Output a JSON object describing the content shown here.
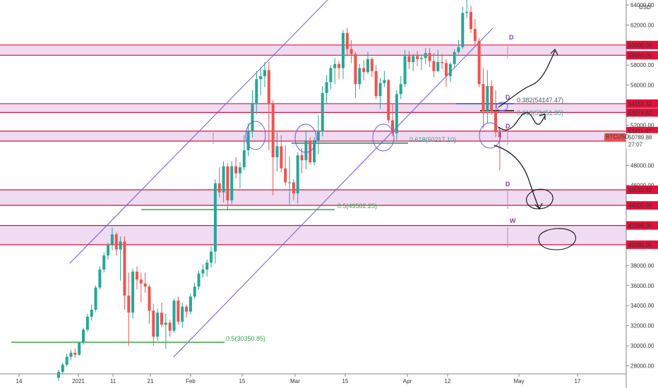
{
  "chart_data": {
    "type": "candlestick",
    "symbol": "BTCUSD",
    "currency": "USD",
    "current_price": "50789.88",
    "countdown": "27:07",
    "x_ticks": [
      "14",
      "2021",
      "11",
      "21",
      "Feb",
      "15",
      "Mar",
      "15",
      "Apr",
      "12",
      "May",
      "17"
    ],
    "y_ticks": [
      "64000.00",
      "62000.00",
      "60000.00",
      "58000.00",
      "56000.00",
      "54000.00",
      "52000.00",
      "50000.00",
      "48000.00",
      "46000.00",
      "44000.00",
      "42000.00",
      "40000.00",
      "38000.00",
      "36000.00",
      "34000.00",
      "32000.00",
      "30000.00",
      "28000.00"
    ],
    "ylim": [
      27500,
      64500
    ],
    "zones": [
      {
        "low": 58980,
        "high": 60000,
        "low_label": "58980.00",
        "high_label": "60000.00"
      },
      {
        "low": 53274.62,
        "high": 54152.32,
        "low_label": "53274.62",
        "high_label": "54152.32"
      },
      {
        "low": 50414.28,
        "high": 51411.67,
        "low_label": "50414.28",
        "high_label": "51411.67"
      },
      {
        "low": 44000,
        "high": 45559.92,
        "low_label": "44000.00",
        "high_label": "45559.92"
      },
      {
        "low": 40080,
        "high": 41998,
        "low_label": "40080.00",
        "high_label": "41998.00"
      }
    ],
    "fib_levels": [
      {
        "text": "0.382(54147.47)",
        "value": 54147.47
      },
      {
        "text": "0.618(53451.35)",
        "value": 53451.35
      },
      {
        "text": "0.618(50217.10)",
        "value": 50217.1
      },
      {
        "text": "0.5(43582.25)",
        "value": 43582.25
      },
      {
        "text": "0.5(30350.85)",
        "value": 30350.85
      }
    ],
    "timeframe_markers": [
      "D",
      "D",
      "D",
      "D",
      "W"
    ],
    "candles": [
      [
        26800,
        27600,
        26500,
        27400
      ],
      [
        27400,
        28300,
        27200,
        28100
      ],
      [
        28100,
        29200,
        27900,
        28900
      ],
      [
        28900,
        29600,
        28600,
        29300
      ],
      [
        29300,
        29700,
        28800,
        29100
      ],
      [
        29100,
        30400,
        29000,
        30300
      ],
      [
        30300,
        31800,
        30100,
        31600
      ],
      [
        31600,
        33200,
        31400,
        32900
      ],
      [
        32900,
        34100,
        32500,
        33600
      ],
      [
        33600,
        36000,
        33400,
        35800
      ],
      [
        35800,
        37900,
        35600,
        37600
      ],
      [
        37600,
        39300,
        37300,
        39000
      ],
      [
        39000,
        40300,
        38600,
        40100
      ],
      [
        40100,
        41800,
        39500,
        41100
      ],
      [
        41100,
        41300,
        39000,
        39600
      ],
      [
        39600,
        40900,
        36500,
        40400
      ],
      [
        40400,
        40900,
        33600,
        35000
      ],
      [
        35000,
        37300,
        30000,
        33300
      ],
      [
        33300,
        37700,
        32700,
        37400
      ],
      [
        37400,
        37900,
        35600,
        36600
      ],
      [
        36600,
        37300,
        34300,
        36200
      ],
      [
        36200,
        37300,
        35300,
        35900
      ],
      [
        35900,
        36100,
        32200,
        33500
      ],
      [
        33500,
        34200,
        30000,
        30900
      ],
      [
        30900,
        33700,
        30500,
        33300
      ],
      [
        33300,
        34300,
        31800,
        32100
      ],
      [
        32100,
        33200,
        29700,
        32300
      ],
      [
        32300,
        32600,
        30900,
        31500
      ],
      [
        31500,
        34700,
        31300,
        34500
      ],
      [
        34500,
        34900,
        32100,
        32400
      ],
      [
        32400,
        34300,
        31800,
        33900
      ],
      [
        33900,
        34100,
        32800,
        33400
      ],
      [
        33400,
        35200,
        33100,
        34900
      ],
      [
        34900,
        36300,
        34700,
        35900
      ],
      [
        35900,
        37500,
        35600,
        37200
      ],
      [
        37200,
        38100,
        36800,
        37600
      ],
      [
        37600,
        38600,
        36900,
        38300
      ],
      [
        38300,
        39900,
        37800,
        39400
      ],
      [
        39400,
        46600,
        38200,
        46200
      ],
      [
        46200,
        47800,
        44800,
        45300
      ],
      [
        45300,
        48400,
        44300,
        47900
      ],
      [
        47900,
        48200,
        43500,
        44500
      ],
      [
        44500,
        48400,
        44100,
        47900
      ],
      [
        47900,
        48800,
        46700,
        47200
      ],
      [
        47200,
        48300,
        45700,
        47800
      ],
      [
        47800,
        51000,
        47500,
        49500
      ],
      [
        49500,
        52200,
        48900,
        51400
      ],
      [
        51400,
        55500,
        50800,
        54200
      ],
      [
        54200,
        57400,
        53100,
        56600
      ],
      [
        56600,
        57800,
        55000,
        56900
      ],
      [
        56900,
        58300,
        55800,
        57500
      ],
      [
        57500,
        58300,
        49500,
        54200
      ],
      [
        54200,
        54500,
        45000,
        48800
      ],
      [
        48800,
        51300,
        47400,
        49900
      ],
      [
        49900,
        51000,
        47300,
        47700
      ],
      [
        47700,
        50000,
        46000,
        46300
      ],
      [
        46300,
        48900,
        44100,
        46300
      ],
      [
        46300,
        46600,
        44500,
        45200
      ],
      [
        45200,
        49300,
        44200,
        49000
      ],
      [
        49000,
        49700,
        47200,
        48500
      ],
      [
        48500,
        51500,
        47600,
        50400
      ],
      [
        50400,
        50800,
        48100,
        48300
      ],
      [
        48300,
        50800,
        48000,
        50500
      ],
      [
        50500,
        53000,
        49100,
        51400
      ],
      [
        51400,
        55900,
        50900,
        55200
      ],
      [
        55200,
        57000,
        54100,
        56300
      ],
      [
        56300,
        58000,
        55600,
        57700
      ],
      [
        57700,
        58700,
        56100,
        58100
      ],
      [
        58100,
        58400,
        56600,
        57700
      ],
      [
        57700,
        61500,
        56600,
        61200
      ],
      [
        61200,
        61700,
        59000,
        59600
      ],
      [
        59600,
        60500,
        58200,
        59100
      ],
      [
        59100,
        59300,
        54700,
        56100
      ],
      [
        56100,
        58100,
        55600,
        57700
      ],
      [
        57700,
        58500,
        56500,
        57300
      ],
      [
        57300,
        59300,
        57100,
        58600
      ],
      [
        58600,
        58800,
        56800,
        57400
      ],
      [
        57400,
        58000,
        54600,
        54900
      ],
      [
        54900,
        56700,
        53600,
        56200
      ],
      [
        56200,
        57400,
        55800,
        56500
      ],
      [
        56500,
        56600,
        52200,
        52500
      ],
      [
        52500,
        54100,
        50900,
        51200
      ],
      [
        51200,
        55500,
        50500,
        55100
      ],
      [
        55100,
        56900,
        54600,
        56100
      ],
      [
        56100,
        59500,
        55800,
        58900
      ],
      [
        58900,
        59400,
        57600,
        58300
      ],
      [
        58300,
        59100,
        57400,
        58900
      ],
      [
        58900,
        59400,
        57900,
        58600
      ],
      [
        58600,
        59000,
        57500,
        58700
      ],
      [
        58700,
        59700,
        58100,
        59200
      ],
      [
        59200,
        59700,
        57800,
        58400
      ],
      [
        58400,
        59200,
        56800,
        57400
      ],
      [
        57400,
        59500,
        57300,
        58300
      ],
      [
        58300,
        59100,
        57600,
        58200
      ],
      [
        58200,
        58600,
        55800,
        56900
      ],
      [
        56900,
        58300,
        56300,
        58100
      ],
      [
        58100,
        59600,
        57800,
        59300
      ],
      [
        59300,
        60500,
        59100,
        59800
      ],
      [
        59800,
        63800,
        59600,
        63200
      ],
      [
        63200,
        64900,
        62700,
        63300
      ],
      [
        63300,
        63900,
        61200,
        61600
      ],
      [
        61600,
        62600,
        59800,
        60400
      ],
      [
        60400,
        60700,
        55800,
        56100
      ],
      [
        56100,
        57700,
        51700,
        53400
      ],
      [
        53400,
        57500,
        52200,
        55900
      ],
      [
        55900,
        56500,
        53000,
        53400
      ],
      [
        53400,
        55500,
        50800,
        51300
      ],
      [
        51300,
        51700,
        47500,
        50800
      ]
    ]
  }
}
